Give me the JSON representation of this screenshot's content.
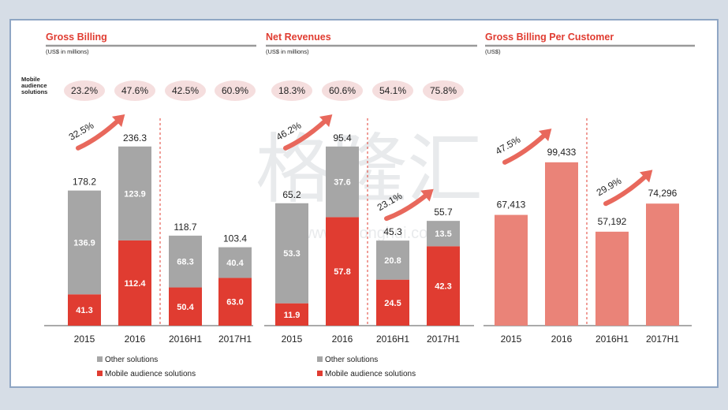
{
  "row_label": [
    "Mobile",
    "audience",
    "solutions"
  ],
  "watermark": {
    "main": "格隆汇",
    "sub": "www.gelonghui.com"
  },
  "colors": {
    "other": "#a6a6a6",
    "mobile": "#e03c31",
    "pink": "#ea8378",
    "title": "#e03c31",
    "pill": "#f5dede",
    "arrow": "#e8685c"
  },
  "chart_data": [
    {
      "type": "bar",
      "stacked": true,
      "title": "Gross Billing",
      "subtitle": "(US$ in millions)",
      "categories": [
        "2015",
        "2016",
        "2016H1",
        "2017H1"
      ],
      "series": [
        {
          "name": "Mobile audience solutions",
          "values": [
            41.3,
            112.4,
            50.4,
            63.0
          ],
          "labels": [
            "41.3",
            "112.4",
            "50.4",
            "63.0"
          ]
        },
        {
          "name": "Other solutions",
          "values": [
            136.9,
            123.9,
            68.3,
            40.4
          ],
          "labels": [
            "136.9",
            "123.9",
            "68.3",
            "40.4"
          ]
        }
      ],
      "totals": [
        "178.2",
        "236.3",
        "118.7",
        "103.4"
      ],
      "mobile_share": [
        "23.2%",
        "47.6%",
        "42.5%",
        "60.9%"
      ],
      "growth": [
        {
          "label": "32.5%",
          "between": [
            0,
            1
          ]
        }
      ],
      "legend": [
        "Other solutions",
        "Mobile audience solutions"
      ],
      "ylim": [
        0,
        260
      ]
    },
    {
      "type": "bar",
      "stacked": true,
      "title": "Net Revenues",
      "subtitle": "(US$ in millions)",
      "categories": [
        "2015",
        "2016",
        "2016H1",
        "2017H1"
      ],
      "series": [
        {
          "name": "Mobile audience solutions",
          "values": [
            11.9,
            57.8,
            24.5,
            42.3
          ],
          "labels": [
            "11.9",
            "57.8",
            "24.5",
            "42.3"
          ]
        },
        {
          "name": "Other solutions",
          "values": [
            53.3,
            37.6,
            20.8,
            13.5
          ],
          "labels": [
            "53.3",
            "37.6",
            "20.8",
            "13.5"
          ]
        }
      ],
      "totals": [
        "65.2",
        "95.4",
        "45.3",
        "55.7"
      ],
      "mobile_share": [
        "18.3%",
        "60.6%",
        "54.1%",
        "75.8%"
      ],
      "growth": [
        {
          "label": "46.2%",
          "between": [
            0,
            1
          ]
        },
        {
          "label": "23.1%",
          "between": [
            2,
            3
          ]
        }
      ],
      "legend": [
        "Other solutions",
        "Mobile audience solutions"
      ],
      "ylim": [
        0,
        105
      ]
    },
    {
      "type": "bar",
      "stacked": false,
      "title": "Gross Billing Per Customer",
      "subtitle": "(US$)",
      "categories": [
        "2015",
        "2016",
        "2016H1",
        "2017H1"
      ],
      "series": [
        {
          "name": "Gross billing per customer",
          "values": [
            67413,
            99433,
            57192,
            74296
          ],
          "labels": [
            "67,413",
            "99,433",
            "57,192",
            "74,296"
          ]
        }
      ],
      "growth": [
        {
          "label": "47.5%",
          "between": [
            0,
            1
          ]
        },
        {
          "label": "29.9%",
          "between": [
            2,
            3
          ]
        }
      ],
      "ylim": [
        0,
        120000
      ]
    }
  ]
}
